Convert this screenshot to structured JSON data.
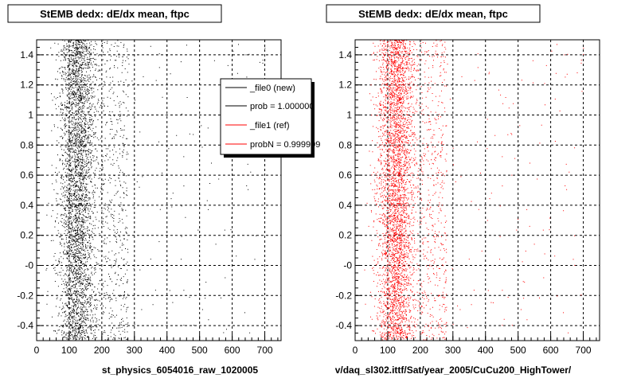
{
  "chart_data": [
    {
      "type": "scatter",
      "title": "StEMB dedx: dE/dx mean, ftpc",
      "xlabel": "st_physics_6054016_raw_1020005",
      "ylabel": "",
      "xlim": [
        0,
        750
      ],
      "ylim": [
        -0.5,
        1.5
      ],
      "x_ticks": [
        "0",
        "100",
        "200",
        "300",
        "400",
        "500",
        "600",
        "700"
      ],
      "x_tick_values": [
        0,
        100,
        200,
        300,
        400,
        500,
        600,
        700
      ],
      "y_ticks": [
        "-0.4",
        "-0.2",
        "-0",
        "0.2",
        "0.4",
        "0.6",
        "0.8",
        "1",
        "1.2",
        "1.4"
      ],
      "y_tick_values": [
        -0.4,
        -0.2,
        0,
        0.2,
        0.4,
        0.6,
        0.8,
        1.0,
        1.2,
        1.4
      ],
      "grid": true,
      "series": [
        {
          "name": "_file0 (new)",
          "color": "#000000",
          "band_center": 125,
          "band_sigma": 38,
          "tail_to": 280
        }
      ],
      "legend": {
        "position": "top-right",
        "entries": [
          {
            "label": "_file0 (new)",
            "color": "#000000"
          },
          {
            "label": "prob = 1.000000",
            "color": "#000000"
          },
          {
            "label": "_file1 (ref)",
            "color": "#ff0000"
          },
          {
            "label": "probN = 0.999999",
            "color": "#ff0000"
          }
        ]
      }
    },
    {
      "type": "scatter",
      "title": "StEMB dedx: dE/dx mean, ftpc",
      "xlabel": "v/daq_sl302.ittf/Sat/year_2005/CuCu200_HighTower/",
      "ylabel": "",
      "xlim": [
        0,
        750
      ],
      "ylim": [
        -0.5,
        1.5
      ],
      "x_ticks": [
        "0",
        "100",
        "200",
        "300",
        "400",
        "500",
        "600",
        "700"
      ],
      "x_tick_values": [
        0,
        100,
        200,
        300,
        400,
        500,
        600,
        700
      ],
      "y_ticks": [
        "-0.4",
        "-0.2",
        "-0",
        "0.2",
        "0.4",
        "0.6",
        "0.8",
        "1",
        "1.2",
        "1.4"
      ],
      "y_tick_values": [
        -0.4,
        -0.2,
        0,
        0.2,
        0.4,
        0.6,
        0.8,
        1.0,
        1.2,
        1.4
      ],
      "grid": true,
      "series": [
        {
          "name": "_file1 (ref)",
          "color": "#ff0000",
          "band_center": 125,
          "band_sigma": 38,
          "tail_to": 280
        }
      ]
    }
  ],
  "colors": {
    "frame": "#000000",
    "grid": "#000000",
    "new": "#000000",
    "ref": "#ff0000",
    "legend_bg": "#ffffff",
    "shadow": "#000000"
  }
}
